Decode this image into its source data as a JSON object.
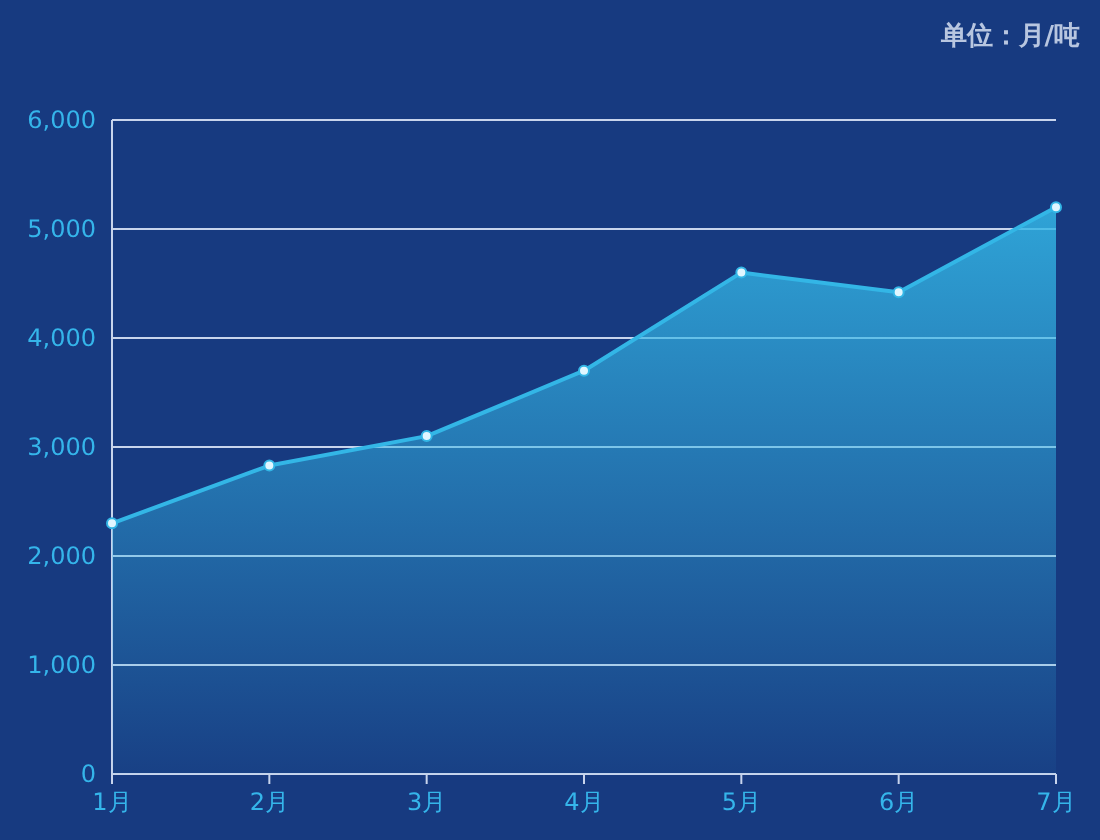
{
  "chart_data": {
    "type": "area",
    "ylabel": "单位：月/吨",
    "categories": [
      "1月",
      "2月",
      "3月",
      "4月",
      "5月",
      "6月",
      "7月"
    ],
    "values": [
      2300,
      2830,
      3100,
      3700,
      4600,
      4420,
      5200
    ],
    "color": "#33b6e6",
    "ylim": [
      0,
      6000
    ],
    "yticks": [
      0,
      {
        "value": 1000,
        "label": "1,000"
      },
      {
        "value": 2000,
        "label": "2,000"
      },
      {
        "value": 3000,
        "label": "3,000"
      },
      {
        "value": 4000,
        "label": "4,000"
      },
      {
        "value": 5000,
        "label": "5,000"
      },
      {
        "value": 6000,
        "label": "6,000"
      }
    ],
    "grid": "y",
    "marker": "circle"
  }
}
